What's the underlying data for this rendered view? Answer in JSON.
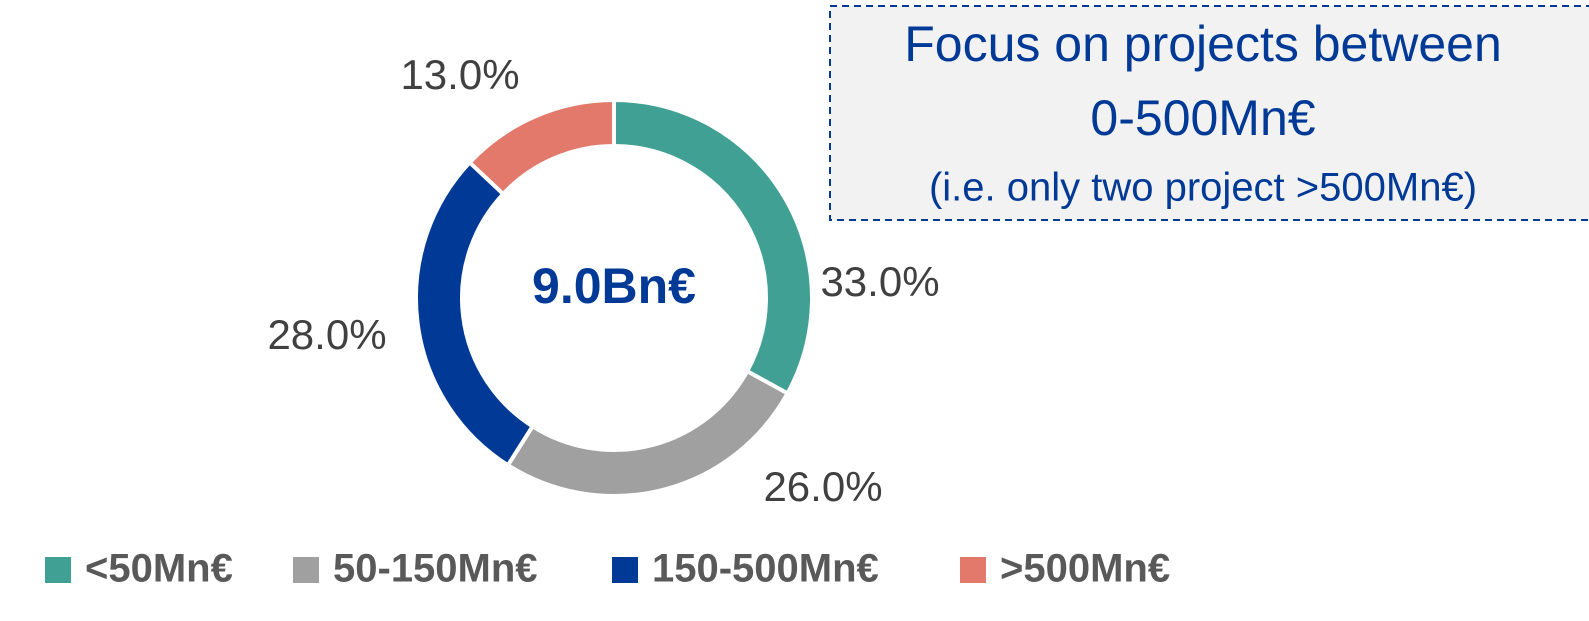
{
  "chart_data": {
    "type": "donut",
    "categories": [
      "<50Mn€",
      "50-150Mn€",
      "150-500Mn€",
      ">500Mn€"
    ],
    "values": [
      33,
      26,
      28,
      13
    ],
    "value_labels": [
      "33.0%",
      "26.0%",
      "28.0%",
      "13.0%"
    ],
    "colors": [
      "#40a094",
      "#a0a0a0",
      "#003a96",
      "#e2796a"
    ],
    "center_label": "9.0Bn€",
    "annotation": [
      "Focus on projects between",
      "0-500Mn€",
      "(i.e. only two project >500Mn€)"
    ],
    "legend": "bottom"
  }
}
